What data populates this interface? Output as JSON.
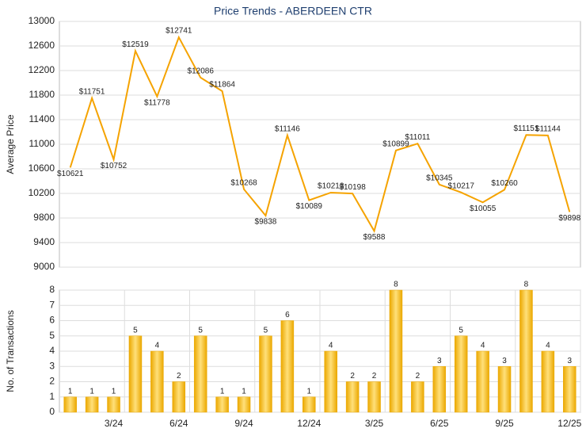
{
  "chart_data": [
    {
      "type": "line",
      "title": "Price Trends - ABERDEEN CTR",
      "ylabel": "Average Price",
      "values": [
        10621,
        11751,
        10752,
        12519,
        11778,
        12741,
        12086,
        11864,
        10268,
        9838,
        11146,
        10089,
        10213,
        10198,
        9588,
        10899,
        11011,
        10345,
        10217,
        10055,
        10260,
        11151,
        11144,
        9898
      ],
      "value_labels": [
        "$10621",
        "$11751",
        "$10752",
        "$12519",
        "$11778",
        "$12741",
        "$12086",
        "$11864",
        "$10268",
        "$9838",
        "$11146",
        "$10089",
        "$10213",
        "$10198",
        "$9588",
        "$10899",
        "$11011",
        "$10345",
        "$10217",
        "$10055",
        "$10260",
        "$11151",
        "$11144",
        "$9898"
      ],
      "color": "#f5a300",
      "ylim": [
        9000,
        13000
      ],
      "yticks": [
        9000,
        9400,
        9800,
        10200,
        10600,
        11000,
        11400,
        11800,
        12200,
        12600,
        13000
      ],
      "grid": true
    },
    {
      "type": "bar",
      "ylabel": "No. of Transactions",
      "categories": [
        null,
        null,
        "3/24",
        null,
        null,
        "6/24",
        null,
        null,
        "9/24",
        null,
        null,
        "12/24",
        null,
        null,
        "3/25",
        null,
        null,
        "6/25",
        null,
        null,
        "9/25",
        null,
        null,
        "12/25"
      ],
      "values": [
        1,
        1,
        1,
        5,
        4,
        2,
        5,
        1,
        1,
        5,
        6,
        1,
        4,
        2,
        2,
        8,
        2,
        3,
        5,
        4,
        3,
        8,
        4,
        3
      ],
      "color": "#eba800",
      "ylim": [
        0,
        8
      ],
      "yticks": [
        0,
        1,
        2,
        3,
        4,
        5,
        6,
        7,
        8
      ],
      "grid": true
    }
  ]
}
